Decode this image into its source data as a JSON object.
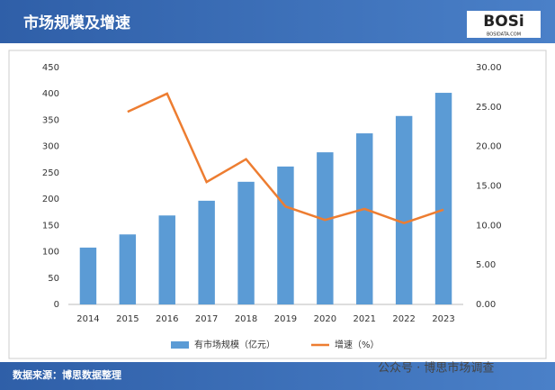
{
  "chart_data": {
    "type": "bar",
    "title": "市场规模及增速",
    "logo": "BOSi",
    "logo_sub": "BOSIDATA.COM",
    "source": "数据来源：博思数据整理",
    "watermark": "公众号 · 博思市场调查",
    "categories": [
      "2014",
      "2015",
      "2016",
      "2017",
      "2018",
      "2019",
      "2020",
      "2021",
      "2022",
      "2023"
    ],
    "series": [
      {
        "name": "有市场规模（亿元）",
        "type": "bar",
        "color": "#5b9bd5",
        "values": [
          108,
          133,
          169,
          197,
          233,
          262,
          289,
          325,
          358,
          402
        ]
      },
      {
        "name": "增速（%）",
        "type": "line",
        "axis": "y2",
        "color": "#ed7d31",
        "values": [
          null,
          24.4,
          26.7,
          15.5,
          18.4,
          12.4,
          10.7,
          12.1,
          10.3,
          12.0
        ]
      }
    ],
    "ylim": [
      0,
      450
    ],
    "yticks": [
      0,
      50,
      100,
      150,
      200,
      250,
      300,
      350,
      400,
      450
    ],
    "y2lim": [
      0,
      30
    ],
    "y2ticks": [
      {
        "value": 0,
        "label": "0.00"
      },
      {
        "value": 5,
        "label": "5.00"
      },
      {
        "value": 10,
        "label": "10.00"
      },
      {
        "value": 15,
        "label": "15.00"
      },
      {
        "value": 20,
        "label": "20.00"
      },
      {
        "value": 25,
        "label": "25.00"
      },
      {
        "value": 30,
        "label": "30.00"
      }
    ],
    "grid": false,
    "legend": "bottom"
  }
}
